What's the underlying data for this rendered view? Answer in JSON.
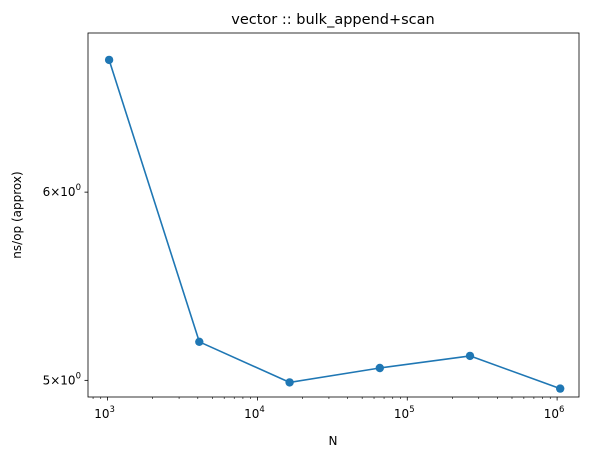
{
  "chart_data": {
    "type": "line",
    "title": "vector :: bulk_append+scan",
    "xlabel": "N",
    "ylabel": "ns/op (approx)",
    "x_scale": "log",
    "y_scale": "log",
    "xlim": [
      740,
      1400000
    ],
    "ylim": [
      4.92,
      7.0
    ],
    "grid": false,
    "x_ticks": [
      {
        "value": 1000,
        "base": "10",
        "exp": "3"
      },
      {
        "value": 10000,
        "base": "10",
        "exp": "4"
      },
      {
        "value": 100000,
        "base": "10",
        "exp": "5"
      },
      {
        "value": 1000000,
        "base": "10",
        "exp": "6"
      }
    ],
    "y_ticks": [
      {
        "value": 5,
        "mant": "5",
        "base": "10",
        "exp": "0"
      },
      {
        "value": 6,
        "mant": "6",
        "base": "10",
        "exp": "0"
      }
    ],
    "series": [
      {
        "color": "#1f77b4",
        "x": [
          1024,
          4096,
          16384,
          65536,
          262144,
          1048576
        ],
        "y": [
          6.82,
          5.19,
          4.99,
          5.06,
          5.12,
          4.96
        ]
      }
    ]
  }
}
